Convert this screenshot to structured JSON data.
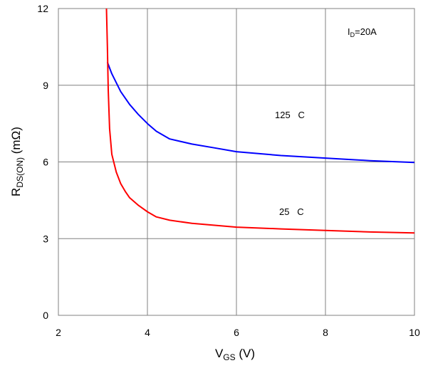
{
  "chart_data": {
    "type": "line",
    "xlabel": {
      "main": "V",
      "sub": "GS",
      "unit": " (V)"
    },
    "ylabel": {
      "main": "R",
      "sub": "DS(ON)",
      "unit": " (mΩ)"
    },
    "xlim": [
      2,
      10
    ],
    "ylim": [
      0,
      12
    ],
    "xticks": [
      2,
      4,
      6,
      8,
      10
    ],
    "yticks": [
      0,
      3,
      6,
      9,
      12
    ],
    "grid": true,
    "annotations": {
      "condition": {
        "main": "I",
        "sub": "D",
        "rest": "=20A"
      },
      "hot_label": "125   C",
      "cold_label": "25   C"
    },
    "series": [
      {
        "color": "#0000ff",
        "x": [
          3.1,
          3.2,
          3.4,
          3.6,
          3.8,
          4.0,
          4.2,
          4.5,
          5.0,
          5.5,
          6.0,
          7.0,
          8.0,
          9.0,
          10.0
        ],
        "y": [
          9.9,
          9.45,
          8.75,
          8.25,
          7.85,
          7.5,
          7.2,
          6.9,
          6.7,
          6.55,
          6.4,
          6.25,
          6.15,
          6.05,
          5.98
        ]
      },
      {
        "color": "#ff0000",
        "x": [
          3.08,
          3.1,
          3.12,
          3.15,
          3.2,
          3.3,
          3.4,
          3.5,
          3.6,
          3.8,
          4.0,
          4.2,
          4.5,
          5.0,
          6.0,
          7.0,
          8.0,
          9.0,
          10.0
        ],
        "y": [
          12.0,
          10.5,
          8.8,
          7.3,
          6.3,
          5.6,
          5.15,
          4.85,
          4.6,
          4.3,
          4.05,
          3.85,
          3.72,
          3.6,
          3.45,
          3.38,
          3.32,
          3.26,
          3.22
        ]
      }
    ]
  }
}
